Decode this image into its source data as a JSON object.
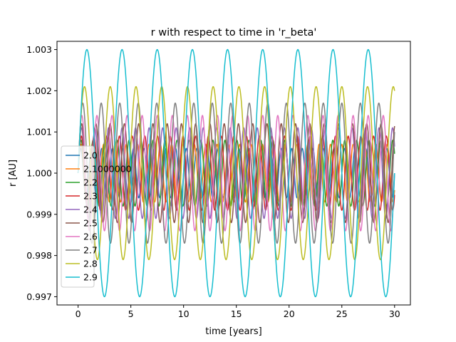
{
  "chart_data": {
    "type": "line",
    "title": "r with respect to time in 'r_beta'",
    "xlabel": "time [years]",
    "ylabel": "r [AU]",
    "xlim": [
      -2,
      31.5
    ],
    "ylim": [
      0.9968,
      1.0032
    ],
    "xticks": [
      0,
      5,
      10,
      15,
      20,
      25,
      30
    ],
    "xtick_labels": [
      "0",
      "5",
      "10",
      "15",
      "20",
      "25",
      "30"
    ],
    "yticks": [
      0.997,
      0.998,
      0.999,
      1.0,
      1.001,
      1.002,
      1.003
    ],
    "ytick_labels": [
      "0.997",
      "0.998",
      "0.999",
      "1.000",
      "1.001",
      "1.002",
      "1.003"
    ],
    "grid": false,
    "legend_position": "center-left",
    "x_range": [
      0,
      30
    ],
    "series": [
      {
        "name": "2.0",
        "color": "#1f77b4",
        "amplitude": 0.0006,
        "frequency_cycles_per_year": 1.0
      },
      {
        "name": "2.1000000",
        "color": "#ff7f0e",
        "amplitude": 0.0007,
        "frequency_cycles_per_year": 0.93
      },
      {
        "name": "2.2",
        "color": "#2ca02c",
        "amplitude": 0.0008,
        "frequency_cycles_per_year": 0.88
      },
      {
        "name": "2.3",
        "color": "#d62728",
        "amplitude": 0.0009,
        "frequency_cycles_per_year": 0.83
      },
      {
        "name": "2.4",
        "color": "#9467bd",
        "amplitude": 0.0011,
        "frequency_cycles_per_year": 0.78
      },
      {
        "name": "2.5",
        "color": "#8c564b",
        "amplitude": 0.0012,
        "frequency_cycles_per_year": 0.74
      },
      {
        "name": "2.6",
        "color": "#e377c2",
        "amplitude": 0.0014,
        "frequency_cycles_per_year": 0.7
      },
      {
        "name": "2.7",
        "color": "#7f7f7f",
        "amplitude": 0.0017,
        "frequency_cycles_per_year": 0.57
      },
      {
        "name": "2.8",
        "color": "#bcbd22",
        "amplitude": 0.0021,
        "frequency_cycles_per_year": 0.41
      },
      {
        "name": "2.9",
        "color": "#17becf",
        "amplitude": 0.003,
        "frequency_cycles_per_year": 0.3
      }
    ]
  }
}
